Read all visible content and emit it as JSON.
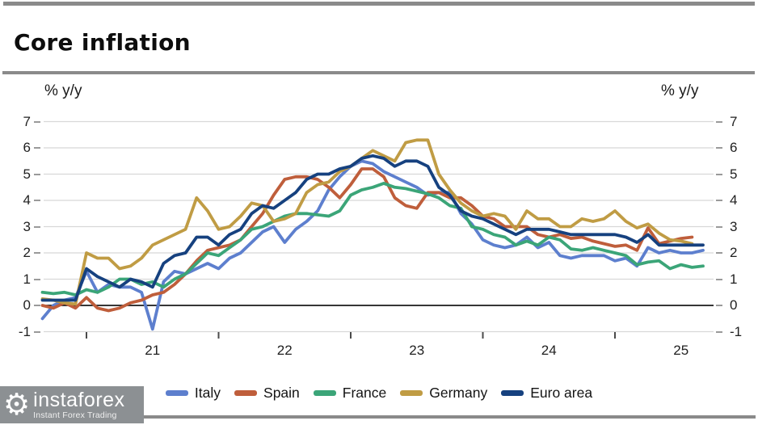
{
  "header": {
    "title": "Core inflation"
  },
  "axes": {
    "left_unit": "% y/y",
    "right_unit": "% y/y",
    "y_ticks": [
      7,
      6,
      5,
      4,
      3,
      2,
      1,
      0,
      -1
    ],
    "x_labels": [
      "21",
      "22",
      "23",
      "24",
      "25"
    ]
  },
  "watermark": {
    "name": "instaforex",
    "tagline": "Instant Forex Trading",
    "gear_glyph": "⚙",
    "bg_color": "#8c9093"
  },
  "accents": {
    "rule_color": "#8a8a8a",
    "grid_color": "#d8d8d8",
    "zero_line_color": "#1a1a1a"
  },
  "chart_data": {
    "type": "line",
    "title": "Core inflation",
    "ylabel": "% y/y",
    "ylim": [
      -1,
      7
    ],
    "x_interval": "monthly",
    "x_start": "2020-09",
    "x_tick_year_labels": [
      "21",
      "22",
      "23",
      "24",
      "25"
    ],
    "grid": true,
    "legend_position": "bottom",
    "series": [
      {
        "name": "Italy",
        "color": "#5d7fce",
        "x_end": "2025-09",
        "values": [
          -0.5,
          0.0,
          0.2,
          0.3,
          1.3,
          0.5,
          0.8,
          0.7,
          0.7,
          0.5,
          -0.9,
          0.9,
          1.3,
          1.2,
          1.4,
          1.6,
          1.4,
          1.8,
          2.0,
          2.4,
          2.8,
          3.0,
          2.4,
          2.9,
          3.2,
          3.6,
          4.4,
          4.9,
          5.3,
          5.5,
          5.4,
          5.1,
          4.9,
          4.7,
          4.5,
          4.2,
          4.3,
          4.3,
          3.5,
          3.1,
          2.5,
          2.3,
          2.2,
          2.3,
          2.6,
          2.2,
          2.4,
          1.9,
          1.8,
          1.9,
          1.9,
          1.9,
          1.7,
          1.8,
          1.5,
          2.2,
          2.0,
          2.1,
          2.0,
          2.0,
          2.1
        ]
      },
      {
        "name": "Spain",
        "color": "#bf5e3b",
        "x_end": "2025-08",
        "values": [
          0.0,
          -0.1,
          0.1,
          -0.1,
          0.3,
          -0.1,
          -0.2,
          -0.1,
          0.1,
          0.2,
          0.4,
          0.5,
          0.8,
          1.2,
          1.7,
          2.1,
          2.2,
          2.3,
          2.5,
          3.0,
          3.5,
          4.2,
          4.8,
          4.9,
          4.9,
          4.8,
          4.5,
          4.1,
          4.6,
          5.2,
          5.2,
          4.9,
          4.1,
          3.8,
          3.7,
          4.3,
          4.3,
          4.1,
          4.1,
          3.8,
          3.4,
          3.3,
          3.0,
          3.0,
          3.0,
          2.7,
          2.6,
          2.7,
          2.55,
          2.6,
          2.45,
          2.35,
          2.25,
          2.3,
          2.1,
          2.95,
          2.35,
          2.45,
          2.55,
          2.6
        ]
      },
      {
        "name": "France",
        "color": "#3ba578",
        "x_end": "2025-09",
        "values": [
          0.5,
          0.45,
          0.5,
          0.4,
          0.6,
          0.5,
          0.7,
          1.0,
          1.0,
          0.8,
          0.9,
          0.7,
          1.0,
          1.2,
          1.6,
          2.0,
          1.9,
          2.2,
          2.5,
          2.9,
          3.0,
          3.2,
          3.4,
          3.5,
          3.5,
          3.45,
          3.4,
          3.6,
          4.2,
          4.4,
          4.5,
          4.65,
          4.5,
          4.45,
          4.35,
          4.25,
          4.1,
          3.8,
          3.7,
          3.0,
          2.9,
          2.7,
          2.6,
          2.3,
          2.45,
          2.3,
          2.6,
          2.5,
          2.15,
          2.1,
          2.2,
          2.1,
          2.0,
          1.9,
          1.55,
          1.65,
          1.7,
          1.4,
          1.55,
          1.45,
          1.5
        ]
      },
      {
        "name": "Germany",
        "color": "#c09c44",
        "x_end": "2025-08",
        "values": [
          0.25,
          0.2,
          0.1,
          0.05,
          2.0,
          1.8,
          1.8,
          1.4,
          1.5,
          1.8,
          2.3,
          2.5,
          2.7,
          2.9,
          4.1,
          3.6,
          2.9,
          3.0,
          3.4,
          3.9,
          3.8,
          3.2,
          3.3,
          3.5,
          4.3,
          4.6,
          4.7,
          5.1,
          5.3,
          5.6,
          5.9,
          5.7,
          5.5,
          6.2,
          6.3,
          6.3,
          5.0,
          4.4,
          3.9,
          3.6,
          3.4,
          3.5,
          3.4,
          2.9,
          3.6,
          3.3,
          3.3,
          3.0,
          3.0,
          3.3,
          3.2,
          3.3,
          3.6,
          3.2,
          2.95,
          3.1,
          2.75,
          2.5,
          2.45,
          2.35
        ]
      },
      {
        "name": "Euro area",
        "color": "#16417f",
        "x_end": "2025-09",
        "values": [
          0.2,
          0.2,
          0.2,
          0.2,
          1.4,
          1.1,
          0.9,
          0.7,
          1.0,
          0.9,
          0.7,
          1.6,
          1.9,
          2.0,
          2.6,
          2.6,
          2.3,
          2.7,
          2.9,
          3.5,
          3.8,
          3.7,
          4.0,
          4.3,
          4.8,
          5.0,
          5.0,
          5.2,
          5.3,
          5.6,
          5.7,
          5.6,
          5.3,
          5.5,
          5.5,
          5.3,
          4.5,
          4.2,
          3.6,
          3.4,
          3.3,
          3.1,
          2.9,
          2.7,
          2.9,
          2.9,
          2.9,
          2.8,
          2.7,
          2.7,
          2.7,
          2.7,
          2.7,
          2.6,
          2.4,
          2.7,
          2.3,
          2.3,
          2.3,
          2.3,
          2.3
        ]
      }
    ]
  }
}
